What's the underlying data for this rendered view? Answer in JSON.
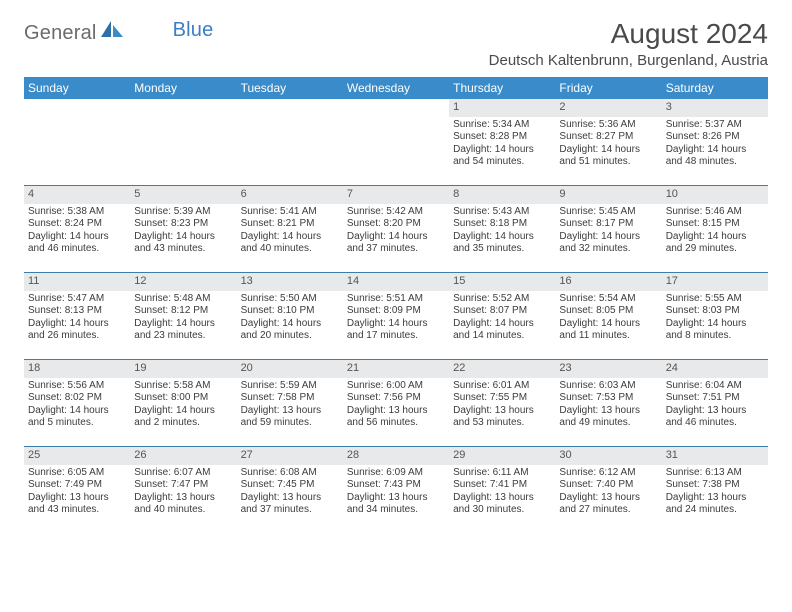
{
  "brand": {
    "part1": "General",
    "part2": "Blue"
  },
  "title": "August 2024",
  "location": "Deutsch Kaltenbrunn, Burgenland, Austria",
  "colors": {
    "header_bg": "#3a8bc9",
    "header_text": "#ffffff",
    "border": "#3a7fa8",
    "daynum_bg": "#e8e9ea",
    "text": "#3c3c3c",
    "logo_gray": "#6b6b6b",
    "logo_blue": "#3a7fc4"
  },
  "weekdays": [
    "Sunday",
    "Monday",
    "Tuesday",
    "Wednesday",
    "Thursday",
    "Friday",
    "Saturday"
  ],
  "weeks": [
    [
      null,
      null,
      null,
      null,
      {
        "n": "1",
        "sr": "Sunrise: 5:34 AM",
        "ss": "Sunset: 8:28 PM",
        "d1": "Daylight: 14 hours",
        "d2": "and 54 minutes."
      },
      {
        "n": "2",
        "sr": "Sunrise: 5:36 AM",
        "ss": "Sunset: 8:27 PM",
        "d1": "Daylight: 14 hours",
        "d2": "and 51 minutes."
      },
      {
        "n": "3",
        "sr": "Sunrise: 5:37 AM",
        "ss": "Sunset: 8:26 PM",
        "d1": "Daylight: 14 hours",
        "d2": "and 48 minutes."
      }
    ],
    [
      {
        "n": "4",
        "sr": "Sunrise: 5:38 AM",
        "ss": "Sunset: 8:24 PM",
        "d1": "Daylight: 14 hours",
        "d2": "and 46 minutes."
      },
      {
        "n": "5",
        "sr": "Sunrise: 5:39 AM",
        "ss": "Sunset: 8:23 PM",
        "d1": "Daylight: 14 hours",
        "d2": "and 43 minutes."
      },
      {
        "n": "6",
        "sr": "Sunrise: 5:41 AM",
        "ss": "Sunset: 8:21 PM",
        "d1": "Daylight: 14 hours",
        "d2": "and 40 minutes."
      },
      {
        "n": "7",
        "sr": "Sunrise: 5:42 AM",
        "ss": "Sunset: 8:20 PM",
        "d1": "Daylight: 14 hours",
        "d2": "and 37 minutes."
      },
      {
        "n": "8",
        "sr": "Sunrise: 5:43 AM",
        "ss": "Sunset: 8:18 PM",
        "d1": "Daylight: 14 hours",
        "d2": "and 35 minutes."
      },
      {
        "n": "9",
        "sr": "Sunrise: 5:45 AM",
        "ss": "Sunset: 8:17 PM",
        "d1": "Daylight: 14 hours",
        "d2": "and 32 minutes."
      },
      {
        "n": "10",
        "sr": "Sunrise: 5:46 AM",
        "ss": "Sunset: 8:15 PM",
        "d1": "Daylight: 14 hours",
        "d2": "and 29 minutes."
      }
    ],
    [
      {
        "n": "11",
        "sr": "Sunrise: 5:47 AM",
        "ss": "Sunset: 8:13 PM",
        "d1": "Daylight: 14 hours",
        "d2": "and 26 minutes."
      },
      {
        "n": "12",
        "sr": "Sunrise: 5:48 AM",
        "ss": "Sunset: 8:12 PM",
        "d1": "Daylight: 14 hours",
        "d2": "and 23 minutes."
      },
      {
        "n": "13",
        "sr": "Sunrise: 5:50 AM",
        "ss": "Sunset: 8:10 PM",
        "d1": "Daylight: 14 hours",
        "d2": "and 20 minutes."
      },
      {
        "n": "14",
        "sr": "Sunrise: 5:51 AM",
        "ss": "Sunset: 8:09 PM",
        "d1": "Daylight: 14 hours",
        "d2": "and 17 minutes."
      },
      {
        "n": "15",
        "sr": "Sunrise: 5:52 AM",
        "ss": "Sunset: 8:07 PM",
        "d1": "Daylight: 14 hours",
        "d2": "and 14 minutes."
      },
      {
        "n": "16",
        "sr": "Sunrise: 5:54 AM",
        "ss": "Sunset: 8:05 PM",
        "d1": "Daylight: 14 hours",
        "d2": "and 11 minutes."
      },
      {
        "n": "17",
        "sr": "Sunrise: 5:55 AM",
        "ss": "Sunset: 8:03 PM",
        "d1": "Daylight: 14 hours",
        "d2": "and 8 minutes."
      }
    ],
    [
      {
        "n": "18",
        "sr": "Sunrise: 5:56 AM",
        "ss": "Sunset: 8:02 PM",
        "d1": "Daylight: 14 hours",
        "d2": "and 5 minutes."
      },
      {
        "n": "19",
        "sr": "Sunrise: 5:58 AM",
        "ss": "Sunset: 8:00 PM",
        "d1": "Daylight: 14 hours",
        "d2": "and 2 minutes."
      },
      {
        "n": "20",
        "sr": "Sunrise: 5:59 AM",
        "ss": "Sunset: 7:58 PM",
        "d1": "Daylight: 13 hours",
        "d2": "and 59 minutes."
      },
      {
        "n": "21",
        "sr": "Sunrise: 6:00 AM",
        "ss": "Sunset: 7:56 PM",
        "d1": "Daylight: 13 hours",
        "d2": "and 56 minutes."
      },
      {
        "n": "22",
        "sr": "Sunrise: 6:01 AM",
        "ss": "Sunset: 7:55 PM",
        "d1": "Daylight: 13 hours",
        "d2": "and 53 minutes."
      },
      {
        "n": "23",
        "sr": "Sunrise: 6:03 AM",
        "ss": "Sunset: 7:53 PM",
        "d1": "Daylight: 13 hours",
        "d2": "and 49 minutes."
      },
      {
        "n": "24",
        "sr": "Sunrise: 6:04 AM",
        "ss": "Sunset: 7:51 PM",
        "d1": "Daylight: 13 hours",
        "d2": "and 46 minutes."
      }
    ],
    [
      {
        "n": "25",
        "sr": "Sunrise: 6:05 AM",
        "ss": "Sunset: 7:49 PM",
        "d1": "Daylight: 13 hours",
        "d2": "and 43 minutes."
      },
      {
        "n": "26",
        "sr": "Sunrise: 6:07 AM",
        "ss": "Sunset: 7:47 PM",
        "d1": "Daylight: 13 hours",
        "d2": "and 40 minutes."
      },
      {
        "n": "27",
        "sr": "Sunrise: 6:08 AM",
        "ss": "Sunset: 7:45 PM",
        "d1": "Daylight: 13 hours",
        "d2": "and 37 minutes."
      },
      {
        "n": "28",
        "sr": "Sunrise: 6:09 AM",
        "ss": "Sunset: 7:43 PM",
        "d1": "Daylight: 13 hours",
        "d2": "and 34 minutes."
      },
      {
        "n": "29",
        "sr": "Sunrise: 6:11 AM",
        "ss": "Sunset: 7:41 PM",
        "d1": "Daylight: 13 hours",
        "d2": "and 30 minutes."
      },
      {
        "n": "30",
        "sr": "Sunrise: 6:12 AM",
        "ss": "Sunset: 7:40 PM",
        "d1": "Daylight: 13 hours",
        "d2": "and 27 minutes."
      },
      {
        "n": "31",
        "sr": "Sunrise: 6:13 AM",
        "ss": "Sunset: 7:38 PM",
        "d1": "Daylight: 13 hours",
        "d2": "and 24 minutes."
      }
    ]
  ]
}
